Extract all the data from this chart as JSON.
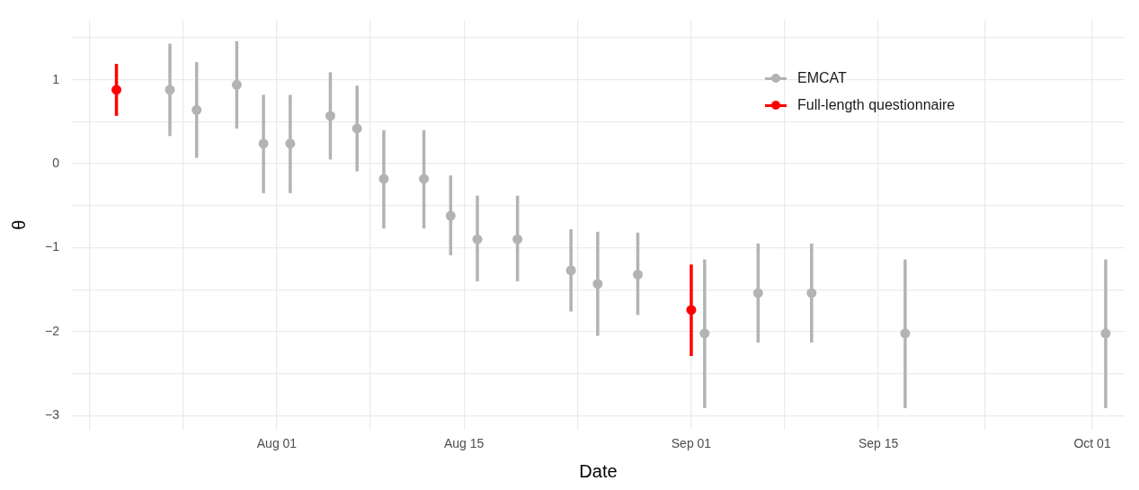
{
  "chart_data": {
    "type": "scatter",
    "xlabel": "Date",
    "ylabel": "θ",
    "marker": "circle",
    "grid": true,
    "legend": "top right",
    "xlim": [
      "--07-16T16:00",
      "--10-03T10:00"
    ],
    "xticks": [
      {
        "value": "--07-18",
        "label": null
      },
      {
        "value": "--07-25",
        "label": null
      },
      {
        "value": "--08-01",
        "label": "Aug 01"
      },
      {
        "value": "--08-08",
        "label": null
      },
      {
        "value": "--08-15",
        "label": "Aug 15"
      },
      {
        "value": "--08-23T12:00",
        "label": null
      },
      {
        "value": "--09-01",
        "label": "Sep 01"
      },
      {
        "value": "--09-08",
        "label": null
      },
      {
        "value": "--09-15",
        "label": "Sep 15"
      },
      {
        "value": "--09-23",
        "label": null
      },
      {
        "value": "--10-01",
        "label": "Oct 01"
      }
    ],
    "ylim": [
      -3.17,
      1.71
    ],
    "yticks": [
      {
        "value": -3,
        "label": "−3"
      },
      {
        "value": -2.5,
        "label": null
      },
      {
        "value": -2,
        "label": "−2"
      },
      {
        "value": -1.5,
        "label": null
      },
      {
        "value": -1,
        "label": "−1"
      },
      {
        "value": -0.5,
        "label": null
      },
      0,
      {
        "value": 0.5,
        "label": null
      },
      1,
      {
        "value": 1.5,
        "label": null
      }
    ],
    "series": [
      {
        "name": "EMCAT",
        "color": "#b3b3b3",
        "x": [
          "--07-24",
          "--07-26",
          "--07-29",
          "--07-31",
          "--08-02",
          "--08-05",
          "--08-07",
          "--08-09",
          "--08-12",
          "--08-14",
          "--08-16",
          "--08-19",
          "--08-23",
          "--08-25",
          "--08-28",
          "--09-02",
          "--09-06",
          "--09-10",
          "--09-17",
          "--10-02"
        ],
        "values": [
          0.88,
          0.64,
          0.94,
          0.24,
          0.24,
          0.57,
          0.42,
          -0.18,
          -0.18,
          -0.62,
          -0.9,
          -0.9,
          -1.27,
          -1.43,
          -1.32,
          -2.02,
          -1.54,
          -1.54,
          -2.02,
          -2.02
        ],
        "errors": [
          [
            0.33,
            1.43
          ],
          [
            0.07,
            1.21
          ],
          [
            0.42,
            1.46
          ],
          [
            -0.35,
            0.82
          ],
          [
            -0.35,
            0.82
          ],
          [
            0.05,
            1.09
          ],
          [
            -0.09,
            0.93
          ],
          [
            -0.77,
            0.4
          ],
          [
            -0.77,
            0.4
          ],
          [
            -1.09,
            -0.14
          ],
          [
            -1.4,
            -0.38
          ],
          [
            -1.4,
            -0.38
          ],
          [
            -1.76,
            -0.78
          ],
          [
            -2.05,
            -0.81
          ],
          [
            -1.8,
            -0.82
          ],
          [
            -2.91,
            -1.14
          ],
          [
            -2.13,
            -0.95
          ],
          [
            -2.13,
            -0.95
          ],
          [
            -2.91,
            -1.14
          ],
          [
            -2.91,
            -1.14
          ]
        ]
      },
      {
        "name": "Full-length questionnaire",
        "color": "#ff0000",
        "x": [
          "--07-20",
          "--09-01"
        ],
        "values": [
          0.88,
          -1.74
        ],
        "errors": [
          [
            0.57,
            1.19
          ],
          [
            -2.29,
            -1.2
          ]
        ]
      }
    ]
  }
}
